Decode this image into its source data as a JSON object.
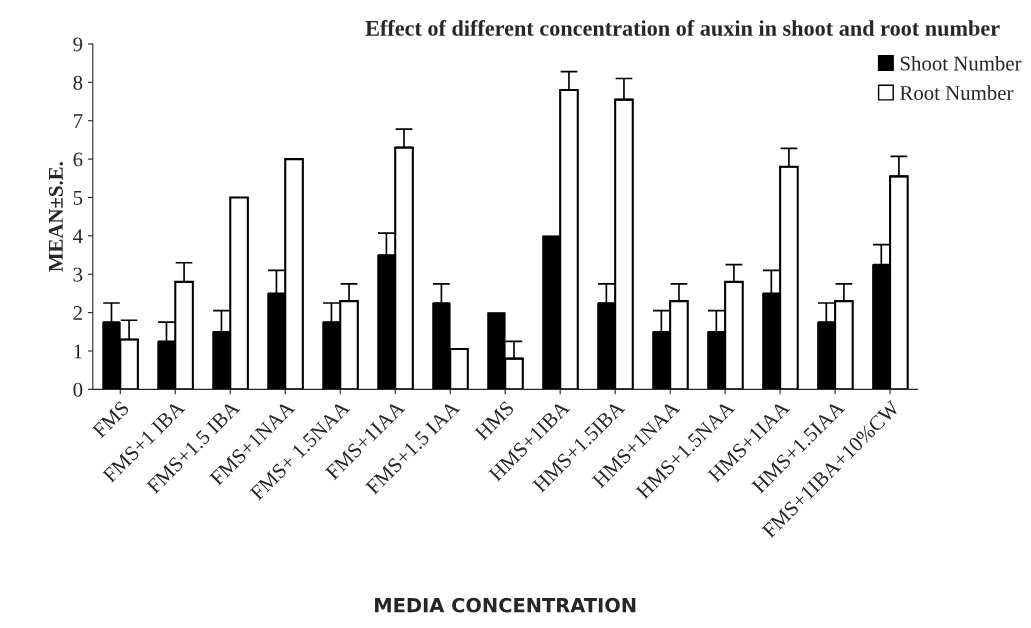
{
  "chart_data": {
    "type": "bar",
    "title": "Effect of different concentration of auxin in shoot and root number",
    "xlabel": "MEDIA CONCENTRATION",
    "ylabel": "MEAN±S.E.",
    "categories": [
      "FMS",
      "FMS+1 IBA",
      "FMS+1.5 IBA",
      "FMS+1NAA",
      "FMS+ 1.5NAA",
      "FMS+1IAA",
      "FMS+1.5 IAA",
      "HMS",
      "HMS+1IBA",
      "HMS+1.5IBA",
      "HMS+1NAA",
      "HMS+1.5NAA",
      "HMS+1IAA",
      "HMS+1.5IAA",
      "FMS+1IBA+10%CW"
    ],
    "series": [
      {
        "name": "Shoot Number",
        "color": "#000000",
        "values": [
          1.75,
          1.25,
          1.5,
          2.5,
          1.75,
          3.5,
          2.25,
          2,
          4,
          2.25,
          1.5,
          1.5,
          2.5,
          1.75,
          3.25
        ],
        "errors": [
          0.5,
          0.5,
          0.55,
          0.6,
          0.5,
          0.57,
          0.5,
          null,
          null,
          0.5,
          0.55,
          0.55,
          0.6,
          0.5,
          0.52
        ]
      },
      {
        "name": "Root Number",
        "color": "#ffffff",
        "values": [
          1.3,
          2.8,
          5,
          6,
          2.3,
          6.3,
          1.05,
          0.8,
          7.8,
          7.55,
          2.3,
          2.8,
          5.8,
          2.3,
          5.55
        ],
        "errors": [
          0.5,
          0.5,
          null,
          null,
          0.45,
          0.48,
          null,
          0.45,
          0.48,
          0.55,
          0.45,
          0.45,
          0.48,
          0.45,
          0.52
        ]
      }
    ],
    "ylim": [
      0,
      9
    ],
    "yticks": [
      0,
      1,
      2,
      3,
      4,
      5,
      6,
      7,
      8,
      9
    ],
    "grid": false,
    "legend": "top right"
  }
}
